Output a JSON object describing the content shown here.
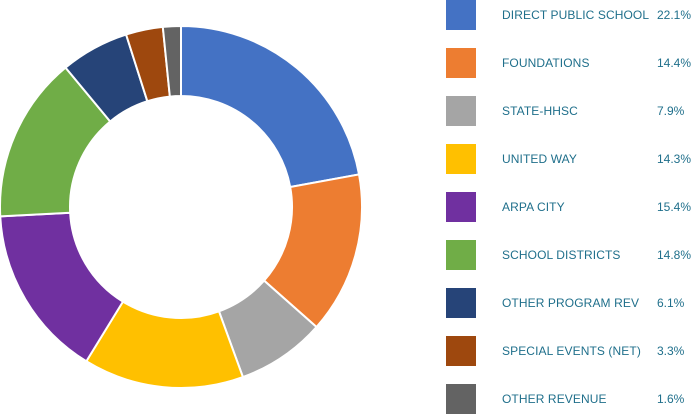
{
  "chart_data": {
    "type": "pie",
    "style": "donut",
    "legend_position": "right",
    "slices": [
      {
        "label": "DIRECT PUBLIC SCHOOL",
        "percent_label": "22.1%",
        "value": 22.1,
        "color": "#4472c4"
      },
      {
        "label": "FOUNDATIONS",
        "percent_label": "14.4%",
        "value": 14.4,
        "color": "#ed7d31"
      },
      {
        "label": "STATE-HHSC",
        "percent_label": "7.9%",
        "value": 7.9,
        "color": "#a5a5a5"
      },
      {
        "label": "UNITED WAY",
        "percent_label": "14.3%",
        "value": 14.3,
        "color": "#ffc000"
      },
      {
        "label": "ARPA CITY",
        "percent_label": "15.4%",
        "value": 15.4,
        "color": "#7030a0"
      },
      {
        "label": "SCHOOL DISTRICTS",
        "percent_label": "14.8%",
        "value": 14.8,
        "color": "#70ad47"
      },
      {
        "label": "OTHER PROGRAM REV",
        "percent_label": "6.1%",
        "value": 6.1,
        "color": "#264478"
      },
      {
        "label": "SPECIAL EVENTS (NET)",
        "percent_label": "3.3%",
        "value": 3.3,
        "color": "#9e480e"
      },
      {
        "label": "OTHER REVENUE",
        "percent_label": "1.6%",
        "value": 1.6,
        "color": "#636363"
      }
    ]
  }
}
